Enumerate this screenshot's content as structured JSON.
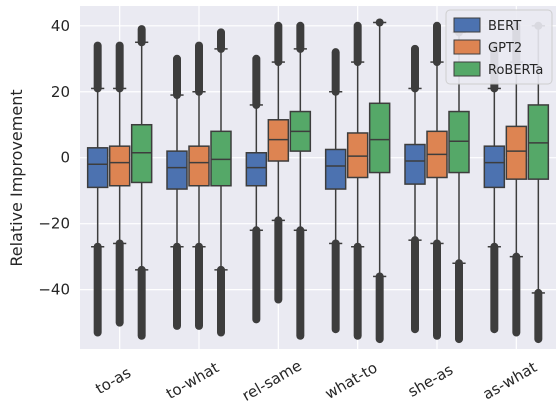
{
  "chart_data": {
    "type": "box",
    "ylabel": "Relative Improvement",
    "xlabel": "",
    "ylim": [
      -58,
      46
    ],
    "yticks": [
      -40,
      -20,
      0,
      20,
      40
    ],
    "grid": true,
    "legend": {
      "placement": "top-right"
    },
    "categories": [
      "to-as",
      "to-what",
      "rel-same",
      "what-to",
      "she-as",
      "as-what"
    ],
    "series": [
      {
        "name": "BERT",
        "color": "#4c72b0",
        "boxes": [
          {
            "q1": -9,
            "median": -2,
            "q3": 3,
            "whisker_low": -27,
            "whisker_high": 21,
            "outlier_low": -53,
            "outlier_high": 34
          },
          {
            "q1": -9.5,
            "median": -3,
            "q3": 2,
            "whisker_low": -27,
            "whisker_high": 19,
            "outlier_low": -51,
            "outlier_high": 30
          },
          {
            "q1": -8.5,
            "median": -3,
            "q3": 1.5,
            "whisker_low": -22,
            "whisker_high": 16,
            "outlier_low": -49,
            "outlier_high": 30
          },
          {
            "q1": -9.5,
            "median": -2.5,
            "q3": 2.5,
            "whisker_low": -26,
            "whisker_high": 20,
            "outlier_low": -52,
            "outlier_high": 32
          },
          {
            "q1": -8,
            "median": -1,
            "q3": 4,
            "whisker_low": -25,
            "whisker_high": 21,
            "outlier_low": -52,
            "outlier_high": 33
          },
          {
            "q1": -9,
            "median": -1.5,
            "q3": 3.5,
            "whisker_low": -27,
            "whisker_high": 21,
            "outlier_low": -52,
            "outlier_high": 34
          }
        ]
      },
      {
        "name": "GPT2",
        "color": "#dd8452",
        "boxes": [
          {
            "q1": -8.5,
            "median": -1.5,
            "q3": 3.5,
            "whisker_low": -26,
            "whisker_high": 21,
            "outlier_low": -50,
            "outlier_high": 34
          },
          {
            "q1": -8.5,
            "median": -1.5,
            "q3": 3.5,
            "whisker_low": -27,
            "whisker_high": 20,
            "outlier_low": -51,
            "outlier_high": 34
          },
          {
            "q1": -1,
            "median": 5.5,
            "q3": 11.5,
            "whisker_low": -19,
            "whisker_high": 29,
            "outlier_low": -43,
            "outlier_high": 40
          },
          {
            "q1": -6,
            "median": 0.5,
            "q3": 7.5,
            "whisker_low": -27,
            "whisker_high": 29,
            "outlier_low": -54,
            "outlier_high": 40
          },
          {
            "q1": -6,
            "median": 1,
            "q3": 8,
            "whisker_low": -26,
            "whisker_high": 29,
            "outlier_low": -54,
            "outlier_high": 40
          },
          {
            "q1": -6.5,
            "median": 2,
            "q3": 9.5,
            "whisker_low": -30,
            "whisker_high": 29,
            "outlier_low": -53,
            "outlier_high": 40
          }
        ]
      },
      {
        "name": "RoBERTa",
        "color": "#55a868",
        "boxes": [
          {
            "q1": -7.5,
            "median": 1.5,
            "q3": 10,
            "whisker_low": -34,
            "whisker_high": 35,
            "outlier_low": -54,
            "outlier_high": 39
          },
          {
            "q1": -8.5,
            "median": -0.5,
            "q3": 8,
            "whisker_low": -34,
            "whisker_high": 33,
            "outlier_low": -53,
            "outlier_high": 38
          },
          {
            "q1": 2,
            "median": 8,
            "q3": 14,
            "whisker_low": -22,
            "whisker_high": 33,
            "outlier_low": -54,
            "outlier_high": 40
          },
          {
            "q1": -4.5,
            "median": 5.5,
            "q3": 16.5,
            "whisker_low": -36,
            "whisker_high": 41,
            "outlier_low": -55,
            "outlier_high": 41
          },
          {
            "q1": -4.5,
            "median": 5,
            "q3": 14,
            "whisker_low": -32,
            "whisker_high": 38,
            "outlier_low": -55,
            "outlier_high": 40
          },
          {
            "q1": -6.5,
            "median": 4.5,
            "q3": 16,
            "whisker_low": -41,
            "whisker_high": 40,
            "outlier_low": -55,
            "outlier_high": 40
          }
        ]
      }
    ]
  }
}
